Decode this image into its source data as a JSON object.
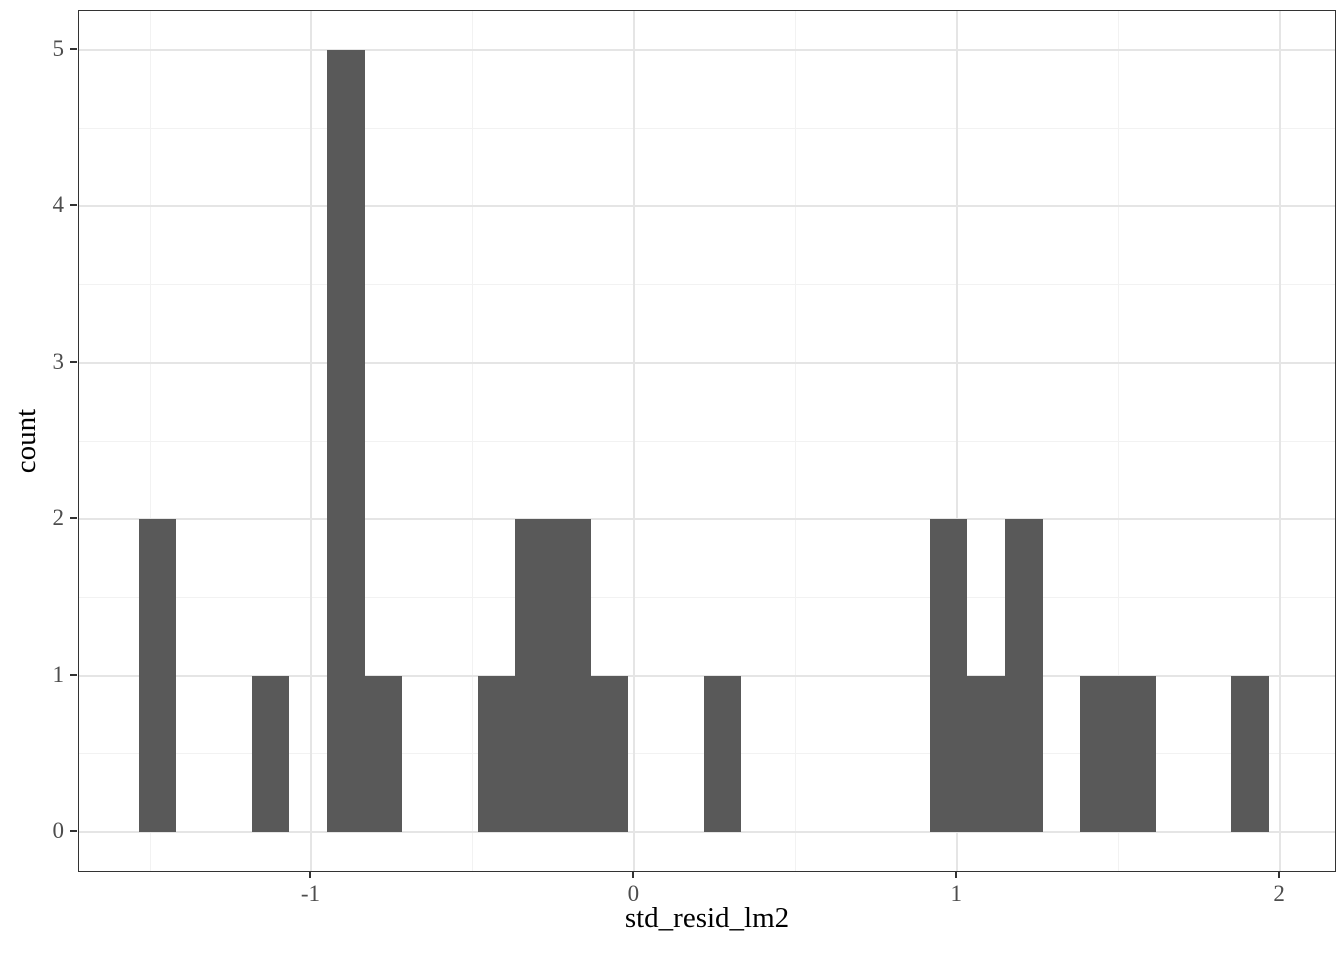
{
  "chart_data": {
    "type": "bar",
    "subtype": "histogram",
    "title": "",
    "xlabel": "std_resid_lm2",
    "ylabel": "count",
    "xlim": [
      -1.72,
      2.17
    ],
    "ylim": [
      -0.25,
      5.25
    ],
    "x_ticks": [
      -1,
      0,
      1,
      2
    ],
    "y_ticks": [
      0,
      1,
      2,
      3,
      4,
      5
    ],
    "x_minor_gridlines": [
      -1.5,
      -0.5,
      0.5,
      1.5
    ],
    "y_minor_gridlines": [
      0.5,
      1.5,
      2.5,
      3.5,
      4.5
    ],
    "binwidth": 0.11667,
    "total_count": 24,
    "bins": [
      {
        "center": -1.4767,
        "count": 2
      },
      {
        "center": -1.36,
        "count": 0
      },
      {
        "center": -1.2433,
        "count": 0
      },
      {
        "center": -1.1267,
        "count": 1
      },
      {
        "center": -1.01,
        "count": 0
      },
      {
        "center": -0.8933,
        "count": 5
      },
      {
        "center": -0.7767,
        "count": 1
      },
      {
        "center": -0.66,
        "count": 0
      },
      {
        "center": -0.5433,
        "count": 0
      },
      {
        "center": -0.4267,
        "count": 1
      },
      {
        "center": -0.31,
        "count": 2
      },
      {
        "center": -0.1933,
        "count": 2
      },
      {
        "center": -0.0767,
        "count": 1
      },
      {
        "center": 0.04,
        "count": 0
      },
      {
        "center": 0.1567,
        "count": 0
      },
      {
        "center": 0.2733,
        "count": 1
      },
      {
        "center": 0.39,
        "count": 0
      },
      {
        "center": 0.5067,
        "count": 0
      },
      {
        "center": 0.6233,
        "count": 0
      },
      {
        "center": 0.74,
        "count": 0
      },
      {
        "center": 0.8567,
        "count": 0
      },
      {
        "center": 0.9733,
        "count": 2
      },
      {
        "center": 1.09,
        "count": 1
      },
      {
        "center": 1.2067,
        "count": 2
      },
      {
        "center": 1.3233,
        "count": 0
      },
      {
        "center": 1.44,
        "count": 1
      },
      {
        "center": 1.5567,
        "count": 1
      },
      {
        "center": 1.6733,
        "count": 0
      },
      {
        "center": 1.79,
        "count": 0
      },
      {
        "center": 1.9067,
        "count": 1
      }
    ],
    "grid": true,
    "legend": "none",
    "colors": {
      "bar_fill": "#595959",
      "panel_background": "#ffffff",
      "panel_border": "#333333",
      "grid_major": "#e5e5e5",
      "grid_minor": "#f2f2f2",
      "axis_tick": "#333333",
      "tick_text": "#4d4d4d",
      "axis_title_text": "#000000"
    }
  }
}
